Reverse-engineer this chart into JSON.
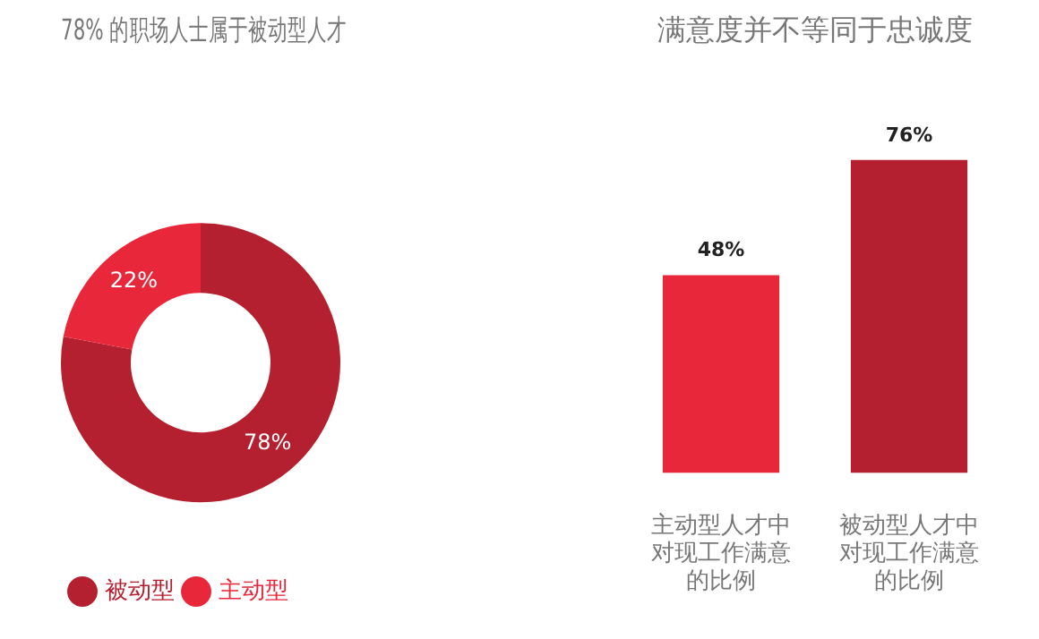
{
  "chart_data": [
    {
      "type": "donut",
      "title": "78% 的职场人士属于被动型人才",
      "categories": [
        "被动型",
        "主动型"
      ],
      "values": [
        78,
        22
      ],
      "colors": [
        "#b52030",
        "#e8283a"
      ],
      "value_labels": [
        "78%",
        "22%"
      ],
      "legend": "bottom left"
    },
    {
      "type": "bar",
      "title": "满意度并不等同于忠诚度",
      "categories": [
        "主动型人才中对现工作满意的比例",
        "被动型人才中对现工作满意的比例"
      ],
      "values": [
        48,
        76
      ],
      "colors": [
        "#e8283a",
        "#b52030"
      ],
      "value_labels": [
        "48%",
        "76%"
      ],
      "tick_labels": "x"
    }
  ]
}
